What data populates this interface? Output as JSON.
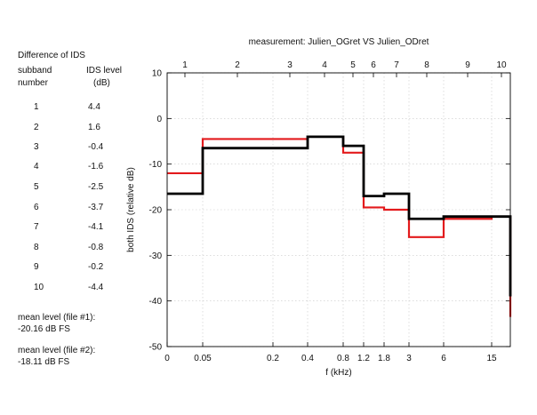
{
  "panel": {
    "title": "Difference of IDS",
    "col1_line1": "subband",
    "col1_line2": "number",
    "col2_line1": "IDS level",
    "col2_line2": "(dB)",
    "rows": [
      {
        "band": "1",
        "level": "4.4"
      },
      {
        "band": "2",
        "level": "1.6"
      },
      {
        "band": "3",
        "level": "-0.4"
      },
      {
        "band": "4",
        "level": "-1.6"
      },
      {
        "band": "5",
        "level": "-2.5"
      },
      {
        "band": "6",
        "level": "-3.7"
      },
      {
        "band": "7",
        "level": "-4.1"
      },
      {
        "band": "8",
        "level": "-0.8"
      },
      {
        "band": "9",
        "level": "-0.2"
      },
      {
        "band": "10",
        "level": "-4.4"
      }
    ],
    "mean1_label": "mean level (file #1):",
    "mean1_value": "-20.16 dB FS",
    "mean2_label": "mean level (file #2):",
    "mean2_value": "-18.11 dB FS"
  },
  "chart_data": {
    "type": "line",
    "title": "measurement: Julien_OGret VS Julien_ODret",
    "xlabel": "f (kHz)",
    "ylabel": "both IDS (relative dB)",
    "ylim": [
      -50,
      10
    ],
    "yticks": [
      10,
      0,
      -10,
      -20,
      -30,
      -40,
      -50
    ],
    "xtick_labels": [
      "0",
      "0.05",
      "0.2",
      "0.4",
      "0.8",
      "1.2",
      "1.8",
      "3",
      "6",
      "15"
    ],
    "top_tick_labels": [
      "1",
      "2",
      "3",
      "4",
      "5",
      "6",
      "7",
      "8",
      "9",
      "10"
    ],
    "grid": true,
    "colors": {
      "series1": "#e31a1c",
      "series2": "#000000"
    },
    "series": [
      {
        "values": [
          -12,
          -4.5,
          -4.5,
          -4,
          -7.5,
          -19.5,
          -20,
          -26,
          -22,
          -21.5,
          -43.5
        ]
      },
      {
        "values": [
          -16.5,
          -6.5,
          -6.5,
          -4,
          -6,
          -17,
          -16.5,
          -22,
          -21.5,
          -21.5,
          -39
        ]
      }
    ]
  }
}
